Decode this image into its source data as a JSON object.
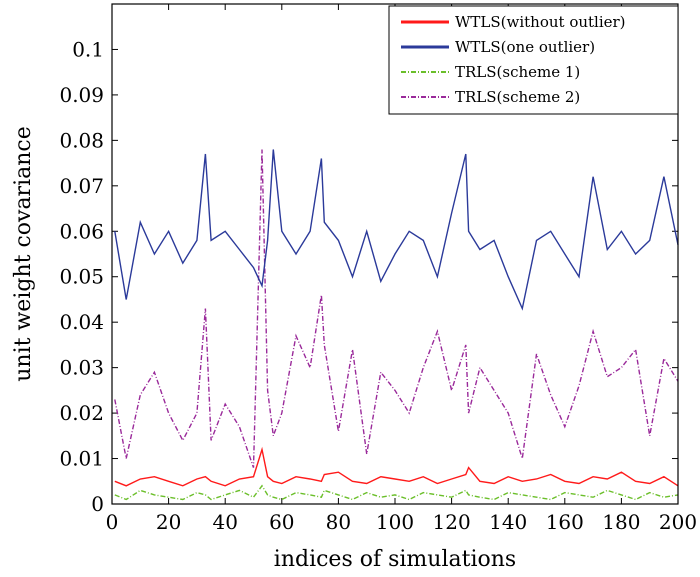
{
  "chart_data": {
    "type": "line",
    "title": "",
    "xlabel": "indices of simulations",
    "ylabel": "unit weight covariance",
    "xlim": [
      0,
      200
    ],
    "ylim": [
      0,
      0.11
    ],
    "xticks": [
      0,
      20,
      40,
      60,
      80,
      100,
      120,
      140,
      160,
      180,
      200
    ],
    "yticks": [
      0,
      0.01,
      0.02,
      0.03,
      0.04,
      0.05,
      0.06,
      0.07,
      0.08,
      0.09,
      0.1
    ],
    "xtick_labels": [
      "0",
      "20",
      "40",
      "60",
      "80",
      "100",
      "120",
      "140",
      "160",
      "180",
      "200"
    ],
    "ytick_labels": [
      "0",
      "0.01",
      "0.02",
      "0.03",
      "0.04",
      "0.05",
      "0.06",
      "0.07",
      "0.08",
      "0.09",
      "0.1"
    ],
    "legend_position": "top-right",
    "x": [
      1,
      5,
      10,
      15,
      20,
      25,
      30,
      33,
      35,
      40,
      45,
      50,
      53,
      55,
      57,
      60,
      65,
      70,
      74,
      75,
      80,
      85,
      90,
      95,
      100,
      105,
      110,
      115,
      120,
      125,
      126,
      130,
      135,
      140,
      145,
      150,
      155,
      160,
      165,
      170,
      175,
      180,
      185,
      190,
      195,
      200
    ],
    "series": [
      {
        "name": "WTLS(without outlier)",
        "color": "#ff1a1a",
        "dash": "solid",
        "values": [
          0.005,
          0.004,
          0.0055,
          0.006,
          0.005,
          0.004,
          0.0055,
          0.006,
          0.005,
          0.004,
          0.0055,
          0.006,
          0.012,
          0.006,
          0.005,
          0.0045,
          0.006,
          0.0055,
          0.005,
          0.0065,
          0.007,
          0.005,
          0.0045,
          0.006,
          0.0055,
          0.005,
          0.006,
          0.0045,
          0.0055,
          0.0065,
          0.008,
          0.005,
          0.0045,
          0.006,
          0.005,
          0.0055,
          0.0065,
          0.005,
          0.0045,
          0.006,
          0.0055,
          0.007,
          0.005,
          0.0045,
          0.006,
          0.004
        ]
      },
      {
        "name": "WTLS(one outlier)",
        "color": "#2b3a9a",
        "dash": "solid",
        "values": [
          0.06,
          0.045,
          0.062,
          0.055,
          0.06,
          0.053,
          0.058,
          0.077,
          0.058,
          0.06,
          0.056,
          0.052,
          0.048,
          0.058,
          0.078,
          0.06,
          0.055,
          0.06,
          0.076,
          0.062,
          0.058,
          0.05,
          0.06,
          0.049,
          0.055,
          0.06,
          0.058,
          0.05,
          0.064,
          0.077,
          0.06,
          0.056,
          0.058,
          0.05,
          0.043,
          0.058,
          0.06,
          0.055,
          0.05,
          0.072,
          0.056,
          0.06,
          0.055,
          0.058,
          0.072,
          0.057
        ]
      },
      {
        "name": "TRLS(scheme 1)",
        "color": "#6bbf2a",
        "dash": "dashdot",
        "values": [
          0.002,
          0.001,
          0.003,
          0.002,
          0.0015,
          0.001,
          0.0025,
          0.002,
          0.001,
          0.002,
          0.003,
          0.0015,
          0.004,
          0.002,
          0.0015,
          0.001,
          0.0025,
          0.002,
          0.0015,
          0.003,
          0.002,
          0.001,
          0.0025,
          0.0015,
          0.002,
          0.001,
          0.0025,
          0.002,
          0.0015,
          0.003,
          0.002,
          0.0015,
          0.001,
          0.0025,
          0.002,
          0.0015,
          0.001,
          0.0025,
          0.002,
          0.0015,
          0.003,
          0.002,
          0.001,
          0.0025,
          0.0015,
          0.002
        ]
      },
      {
        "name": "TRLS(scheme 2)",
        "color": "#9a2a9a",
        "dash": "dashdot",
        "values": [
          0.023,
          0.01,
          0.024,
          0.029,
          0.02,
          0.014,
          0.02,
          0.043,
          0.014,
          0.022,
          0.017,
          0.008,
          0.078,
          0.025,
          0.015,
          0.02,
          0.037,
          0.03,
          0.046,
          0.035,
          0.016,
          0.034,
          0.011,
          0.029,
          0.025,
          0.02,
          0.03,
          0.038,
          0.025,
          0.035,
          0.02,
          0.03,
          0.025,
          0.02,
          0.01,
          0.033,
          0.024,
          0.017,
          0.026,
          0.038,
          0.028,
          0.03,
          0.034,
          0.015,
          0.032,
          0.027
        ]
      }
    ]
  }
}
